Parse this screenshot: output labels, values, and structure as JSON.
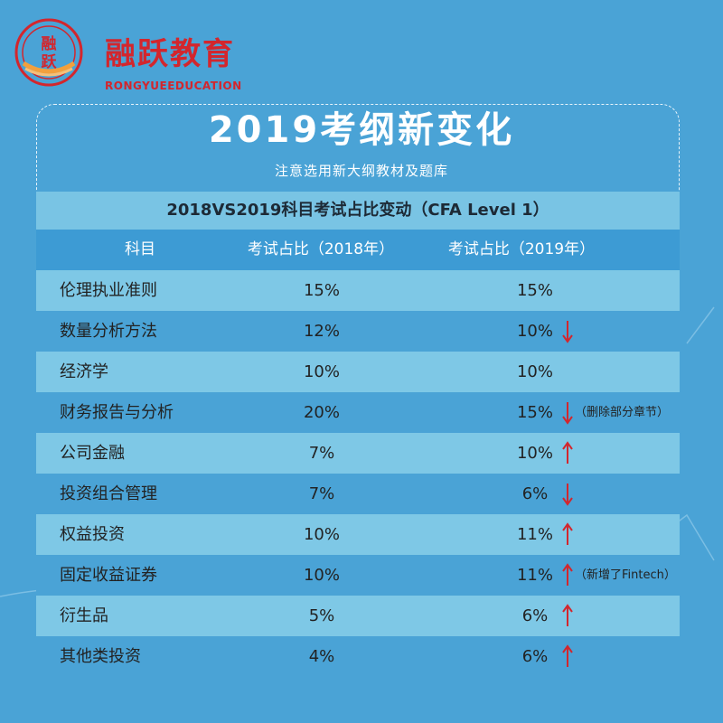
{
  "brand": {
    "cn": "融跃教育",
    "en": "RONGYUEEDUCATION",
    "seal_text": "融跃"
  },
  "title": "2019考纲新变化",
  "subtitle": "注意选用新大纲教材及题库",
  "table": {
    "title": "2018VS2019科目考试占比变动（CFA Level 1）",
    "headers": [
      "科目",
      "考试占比（2018年）",
      "考试占比（2019年）"
    ],
    "rows": [
      {
        "subject": "伦理执业准则",
        "y2018": "15%",
        "y2019": "15%",
        "change": "none",
        "note": ""
      },
      {
        "subject": "数量分析方法",
        "y2018": "12%",
        "y2019": "10%",
        "change": "down",
        "note": ""
      },
      {
        "subject": "经济学",
        "y2018": "10%",
        "y2019": "10%",
        "change": "none",
        "note": ""
      },
      {
        "subject": "财务报告与分析",
        "y2018": "20%",
        "y2019": "15%",
        "change": "down",
        "note": "（删除部分章节）"
      },
      {
        "subject": "公司金融",
        "y2018": "7%",
        "y2019": "10%",
        "change": "up",
        "note": ""
      },
      {
        "subject": "投资组合管理",
        "y2018": "7%",
        "y2019": "6%",
        "change": "down",
        "note": ""
      },
      {
        "subject": "权益投资",
        "y2018": "10%",
        "y2019": "11%",
        "change": "up",
        "note": ""
      },
      {
        "subject": "固定收益证券",
        "y2018": "10%",
        "y2019": "11%",
        "change": "up",
        "note": "（新增了Fintech）"
      },
      {
        "subject": "衍生品",
        "y2018": "5%",
        "y2019": "6%",
        "change": "up",
        "note": ""
      },
      {
        "subject": "其他类投资",
        "y2018": "4%",
        "y2019": "6%",
        "change": "up",
        "note": ""
      }
    ]
  },
  "colors": {
    "background": "#4aa3d6",
    "row_light": "#7ec8e6",
    "brand_red": "#d3262d",
    "arrow_red": "#d3262d"
  },
  "icons": {
    "up": "red-up-arrow-icon",
    "down": "red-down-arrow-icon"
  }
}
